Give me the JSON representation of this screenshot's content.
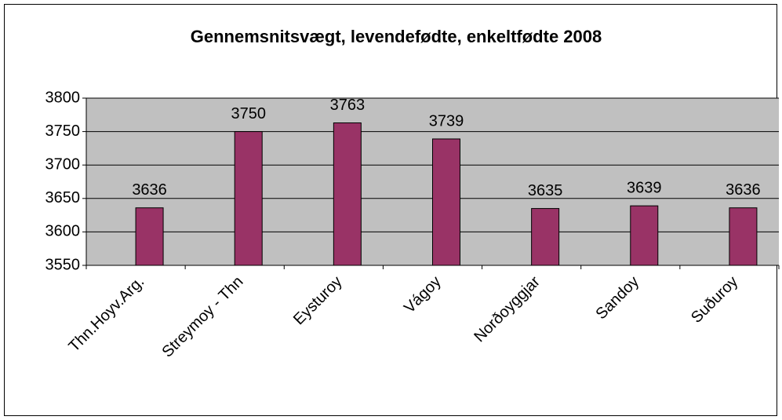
{
  "chart_data": {
    "type": "bar",
    "title": "Gennemsnitsvægt, levendefødte, enkeltfødte 2008",
    "categories": [
      "Thn.Hoyv.Arg.",
      "Streymoy - Thn",
      "Eysturoy",
      "Vágoy",
      "Norðoyggjar",
      "Sandoy",
      "Suðuroy"
    ],
    "values": [
      3636,
      3750,
      3763,
      3739,
      3635,
      3639,
      3636
    ],
    "color": "#993366",
    "ylim": [
      3550,
      3800
    ],
    "yticks": [
      3550,
      3600,
      3650,
      3700,
      3750,
      3800
    ],
    "grid": true
  }
}
